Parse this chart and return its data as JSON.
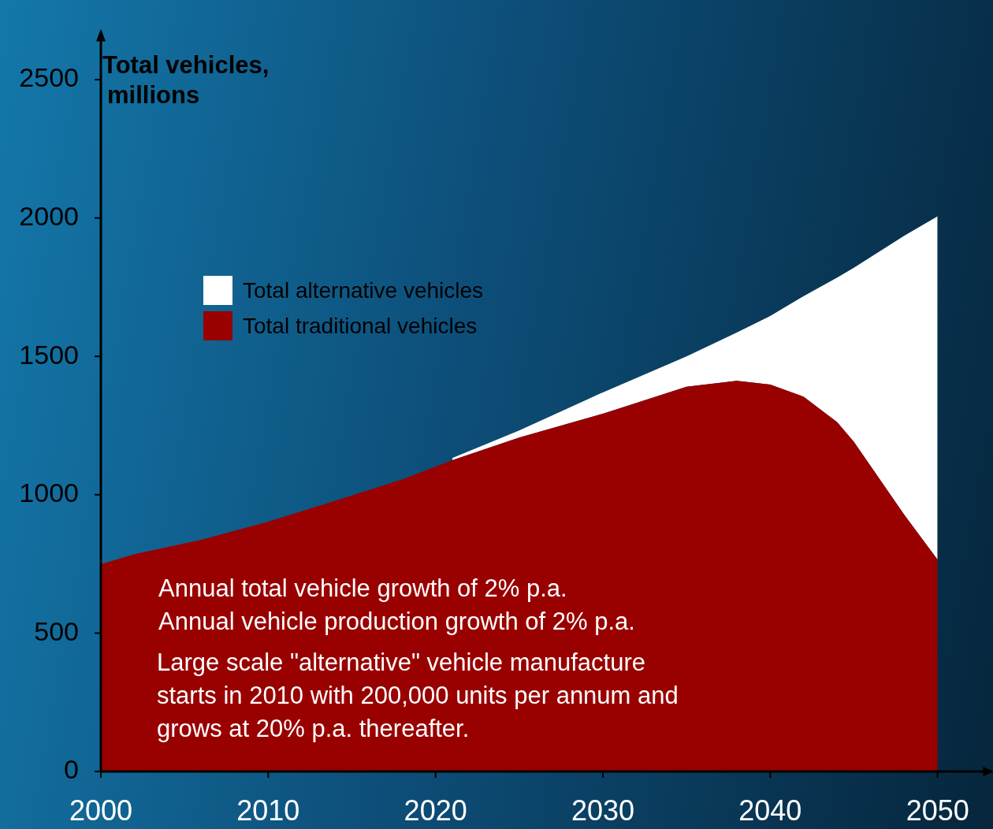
{
  "chart_data": {
    "type": "area",
    "stacked": true,
    "ylabel": "Total vehicles, millions",
    "x": [
      2000,
      2002,
      2006,
      2010,
      2014,
      2018,
      2021,
      2025,
      2030,
      2035,
      2038,
      2040,
      2042,
      2044,
      2045,
      2048,
      2050
    ],
    "series": [
      {
        "name": "Total traditional vehicles",
        "color": "#990000",
        "values": [
          749,
          785,
          837,
          903,
          978,
          1055,
          1125,
          1207,
          1293,
          1390,
          1412,
          1398,
          1354,
          1262,
          1191,
          928,
          765
        ]
      },
      {
        "name": "Total alternative vehicles",
        "color": "#ffffff",
        "values": [
          null,
          null,
          null,
          null,
          null,
          null,
          8,
          25,
          77,
          110,
          174,
          248,
          364,
          523,
          629,
          1008,
          1241
        ]
      }
    ],
    "xlim": [
      2000,
      2053
    ],
    "xticks": [
      2000,
      2010,
      2020,
      2030,
      2040,
      2050
    ],
    "ylim": [
      0,
      2650
    ],
    "yticks": [
      0,
      500,
      1000,
      1500,
      2000,
      2500
    ],
    "grid": false,
    "legend": "top left",
    "annotations": [
      "Annual total vehicle growth of 2% p.a.",
      "Annual vehicle production growth of 2% p.a.",
      "Large scale \"alternative\" vehicle manufacture starts in 2010 with 200,000 units per annum and grows at 20% p.a. thereafter."
    ]
  }
}
